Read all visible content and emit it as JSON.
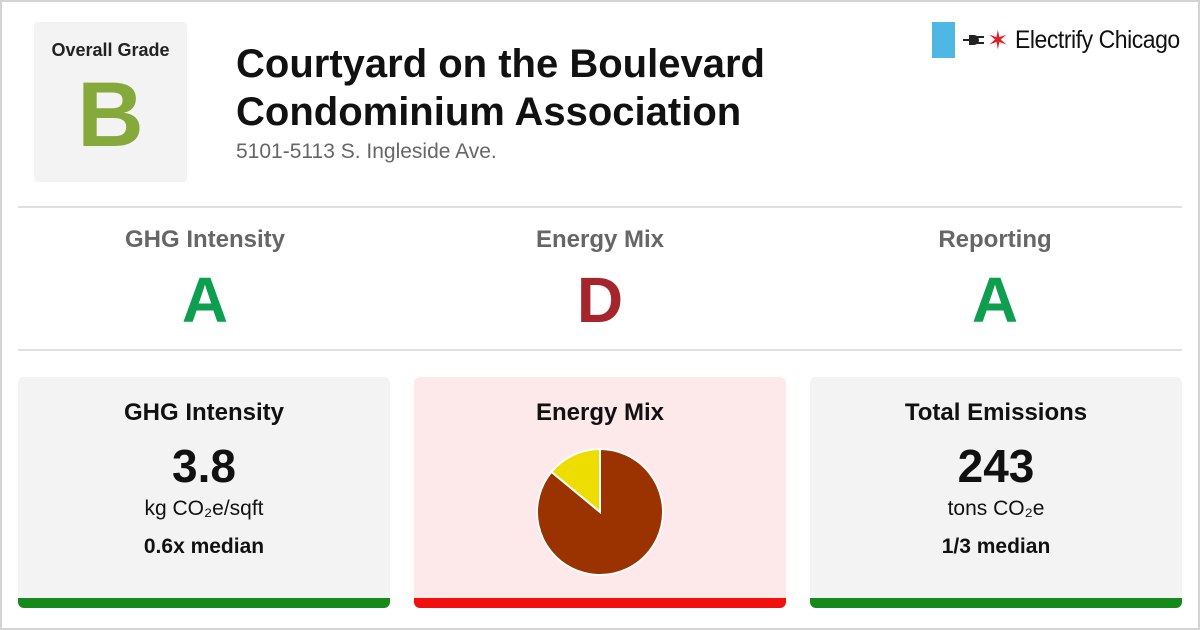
{
  "overall": {
    "label": "Overall Grade",
    "grade": "B",
    "color": "#86a93b"
  },
  "building": {
    "title_line1": "Courtyard on the Boulevard",
    "title_line2": "Condominium Association",
    "address": "5101-5113 S. Ingleside Ave."
  },
  "logo": {
    "text": "Electrify Chicago",
    "icons": [
      "flag-icon",
      "plug-icon",
      "star-icon"
    ]
  },
  "grades": [
    {
      "label": "GHG Intensity",
      "grade": "A",
      "color": "#0d9f4f"
    },
    {
      "label": "Energy Mix",
      "grade": "D",
      "color": "#a4262c"
    },
    {
      "label": "Reporting",
      "grade": "A",
      "color": "#0d9f4f"
    }
  ],
  "cards": {
    "ghg": {
      "title": "GHG Intensity",
      "value": "3.8",
      "unit": "kg CO₂e/sqft",
      "median": "0.6x median",
      "bg": "#f3f3f3",
      "bar": "#158a1a"
    },
    "mix": {
      "title": "Energy Mix",
      "bg": "#fde8ea",
      "bar": "#f01010"
    },
    "total": {
      "title": "Total Emissions",
      "value": "243",
      "unit": "tons CO₂e",
      "median": "1/3 median",
      "bg": "#f3f3f3",
      "bar": "#158a1a"
    }
  },
  "chart_data": {
    "type": "pie",
    "slices": [
      {
        "value": 0.86,
        "color": "#9b3300"
      },
      {
        "value": 0.14,
        "color": "#eedd00"
      }
    ]
  }
}
